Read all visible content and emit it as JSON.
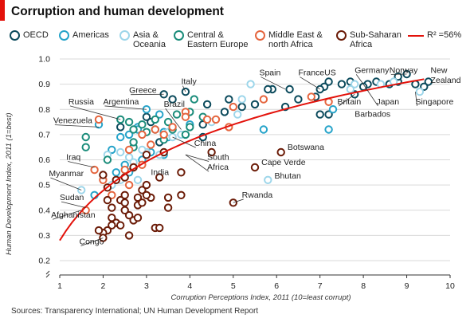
{
  "title": "Corruption and human development",
  "source": "Sources: Transparency International; UN Human Development Report",
  "legend": {
    "oecd": "OECD",
    "americas": "Americas",
    "asia": "Asia &\nOceania",
    "cee": "Central &\nEastern Europe",
    "mena": "Middle East &\nnorth Africa",
    "ssa": "Sub-Saharan\nAfrica",
    "fit": "R² =56%"
  },
  "colors": {
    "oecd": "#0b4a5c",
    "americas": "#25a3c9",
    "asia": "#9dd6ea",
    "cee": "#1a8c7a",
    "mena": "#e5653e",
    "ssa": "#6b1b07",
    "fit": "#e3120b",
    "grid": "#d9d9d9"
  },
  "chart_data": {
    "type": "scatter",
    "title": "Corruption and human development",
    "xlabel": "Corruption Perceptions Index, 2011 (10=least corrupt)",
    "ylabel": "Human Development Index, 2011 (1=best)",
    "xlim": [
      1,
      10
    ],
    "ylim": [
      0.2,
      1.0
    ],
    "xticks": [
      "1",
      "2",
      "3",
      "4",
      "5",
      "6",
      "7",
      "8",
      "9",
      "10"
    ],
    "yticks": [
      "0.2",
      "0.3",
      "0.4",
      "0.5",
      "0.6",
      "0.7",
      "0.8",
      "0.9",
      "1.0"
    ],
    "grid": true,
    "legend_position": "top",
    "trendline": {
      "label": "R² =56%",
      "x_range": [
        1,
        9.4
      ],
      "y_start": 0.28,
      "y_end": 0.92
    },
    "series": [
      {
        "key": "oecd",
        "name": "OECD",
        "points": [
          [
            9.5,
            0.91
          ],
          [
            9.4,
            0.89
          ],
          [
            9.2,
            0.9
          ],
          [
            9.0,
            0.94
          ],
          [
            8.8,
            0.91
          ],
          [
            8.8,
            0.93
          ],
          [
            8.6,
            0.9
          ],
          [
            8.3,
            0.91
          ],
          [
            8.1,
            0.9
          ],
          [
            8.0,
            0.89
          ],
          [
            7.8,
            0.86
          ],
          [
            7.7,
            0.91
          ],
          [
            7.5,
            0.9
          ],
          [
            7.2,
            0.91
          ],
          [
            7.1,
            0.89
          ],
          [
            7.0,
            0.88
          ],
          [
            6.9,
            0.85
          ],
          [
            7.0,
            0.78
          ],
          [
            7.2,
            0.78
          ],
          [
            6.5,
            0.84
          ],
          [
            6.2,
            0.81
          ],
          [
            6.3,
            0.88
          ],
          [
            5.9,
            0.88
          ],
          [
            5.8,
            0.88
          ],
          [
            5.5,
            0.82
          ],
          [
            5.2,
            0.81
          ],
          [
            4.9,
            0.84
          ],
          [
            4.4,
            0.82
          ],
          [
            3.9,
            0.87
          ],
          [
            3.6,
            0.84
          ],
          [
            3.4,
            0.86
          ],
          [
            3.0,
            0.77
          ],
          [
            3.1,
            0.75
          ],
          [
            4.3,
            0.74
          ],
          [
            4.8,
            0.79
          ],
          [
            2.4,
            0.73
          ],
          [
            3.3,
            0.67
          ],
          [
            4.3,
            0.69
          ],
          [
            3.2,
            0.72
          ]
        ]
      },
      {
        "key": "americas",
        "name": "Americas",
        "points": [
          [
            7.2,
            0.72
          ],
          [
            7.3,
            0.8
          ],
          [
            5.7,
            0.72
          ],
          [
            4.0,
            0.74
          ],
          [
            3.4,
            0.71
          ],
          [
            2.8,
            0.73
          ],
          [
            1.9,
            0.74
          ],
          [
            3.0,
            0.8
          ],
          [
            3.3,
            0.78
          ],
          [
            2.6,
            0.7
          ],
          [
            2.4,
            0.69
          ],
          [
            2.2,
            0.64
          ],
          [
            3.0,
            0.62
          ],
          [
            2.5,
            0.58
          ],
          [
            2.3,
            0.55
          ],
          [
            2.6,
            0.55
          ],
          [
            2.9,
            0.6
          ],
          [
            3.1,
            0.63
          ],
          [
            3.4,
            0.62
          ],
          [
            2.8,
            0.72
          ],
          [
            3.5,
            0.69
          ],
          [
            1.8,
            0.46
          ]
        ]
      },
      {
        "key": "asia",
        "name": "Asia & Oceania",
        "points": [
          [
            9.3,
            0.87
          ],
          [
            8.7,
            0.91
          ],
          [
            8.4,
            0.9
          ],
          [
            7.8,
            0.9
          ],
          [
            7.7,
            0.88
          ],
          [
            5.4,
            0.9
          ],
          [
            5.1,
            0.78
          ],
          [
            5.2,
            0.84
          ],
          [
            5.8,
            0.52
          ],
          [
            4.5,
            0.75
          ],
          [
            3.6,
            0.69
          ],
          [
            3.3,
            0.62
          ],
          [
            3.0,
            0.63
          ],
          [
            2.8,
            0.52
          ],
          [
            2.7,
            0.59
          ],
          [
            2.6,
            0.61
          ],
          [
            2.4,
            0.52
          ],
          [
            2.2,
            0.5
          ],
          [
            2.0,
            0.54
          ],
          [
            2.1,
            0.62
          ],
          [
            1.5,
            0.48
          ],
          [
            2.9,
            0.64
          ],
          [
            2.4,
            0.63
          ],
          [
            3.8,
            0.7
          ],
          [
            3.5,
            0.71
          ]
        ]
      },
      {
        "key": "cee",
        "name": "Central & Eastern Europe",
        "points": [
          [
            4.1,
            0.84
          ],
          [
            4.0,
            0.79
          ],
          [
            3.7,
            0.78
          ],
          [
            4.3,
            0.77
          ],
          [
            4.0,
            0.73
          ],
          [
            3.6,
            0.72
          ],
          [
            3.5,
            0.75
          ],
          [
            3.2,
            0.76
          ],
          [
            2.9,
            0.74
          ],
          [
            2.7,
            0.72
          ],
          [
            2.4,
            0.76
          ],
          [
            2.6,
            0.75
          ],
          [
            1.6,
            0.69
          ],
          [
            1.6,
            0.65
          ],
          [
            2.7,
            0.65
          ],
          [
            2.7,
            0.67
          ],
          [
            3.0,
            0.71
          ],
          [
            3.9,
            0.7
          ],
          [
            2.1,
            0.6
          ],
          [
            3.4,
            0.68
          ]
        ]
      },
      {
        "key": "mena",
        "name": "Middle East & north Africa",
        "points": [
          [
            6.8,
            0.85
          ],
          [
            7.2,
            0.83
          ],
          [
            5.7,
            0.84
          ],
          [
            5.0,
            0.81
          ],
          [
            4.6,
            0.76
          ],
          [
            4.4,
            0.76
          ],
          [
            3.9,
            0.79
          ],
          [
            3.9,
            0.77
          ],
          [
            3.6,
            0.73
          ],
          [
            3.4,
            0.7
          ],
          [
            3.2,
            0.72
          ],
          [
            3.1,
            0.66
          ],
          [
            2.9,
            0.7
          ],
          [
            2.6,
            0.64
          ],
          [
            2.9,
            0.58
          ],
          [
            2.7,
            0.57
          ],
          [
            2.5,
            0.56
          ],
          [
            2.6,
            0.5
          ],
          [
            2.2,
            0.46
          ],
          [
            2.0,
            0.52
          ],
          [
            1.8,
            0.56
          ],
          [
            1.9,
            0.76
          ],
          [
            1.6,
            0.4
          ],
          [
            4.9,
            0.73
          ]
        ]
      },
      {
        "key": "ssa",
        "name": "Sub-Saharan Africa",
        "points": [
          [
            6.1,
            0.63
          ],
          [
            5.5,
            0.57
          ],
          [
            5.0,
            0.43
          ],
          [
            4.5,
            0.63
          ],
          [
            3.8,
            0.55
          ],
          [
            3.4,
            0.63
          ],
          [
            3.0,
            0.62
          ],
          [
            2.7,
            0.57
          ],
          [
            2.5,
            0.53
          ],
          [
            2.3,
            0.52
          ],
          [
            2.1,
            0.49
          ],
          [
            2.0,
            0.54
          ],
          [
            2.2,
            0.41
          ],
          [
            2.4,
            0.44
          ],
          [
            2.5,
            0.46
          ],
          [
            2.8,
            0.45
          ],
          [
            2.9,
            0.48
          ],
          [
            3.0,
            0.5
          ],
          [
            3.1,
            0.45
          ],
          [
            2.8,
            0.42
          ],
          [
            2.6,
            0.38
          ],
          [
            2.5,
            0.4
          ],
          [
            2.3,
            0.35
          ],
          [
            2.2,
            0.34
          ],
          [
            2.1,
            0.32
          ],
          [
            2.0,
            0.31
          ],
          [
            1.9,
            0.32
          ],
          [
            2.0,
            0.29
          ],
          [
            2.2,
            0.37
          ],
          [
            2.4,
            0.34
          ],
          [
            2.6,
            0.3
          ],
          [
            2.7,
            0.36
          ],
          [
            2.9,
            0.43
          ],
          [
            3.0,
            0.46
          ],
          [
            3.2,
            0.33
          ],
          [
            3.3,
            0.33
          ],
          [
            3.5,
            0.45
          ],
          [
            3.5,
            0.41
          ],
          [
            3.8,
            0.46
          ],
          [
            2.8,
            0.37
          ],
          [
            2.5,
            0.43
          ],
          [
            2.1,
            0.44
          ],
          [
            3.3,
            0.53
          ]
        ]
      }
    ],
    "annotations": [
      {
        "text": "Spain",
        "x": 6.2,
        "y": 0.88,
        "lx": 5.6,
        "ly": 0.935
      },
      {
        "text": "France",
        "x": 7.0,
        "y": 0.88,
        "lx": 6.5,
        "ly": 0.935
      },
      {
        "text": "US",
        "x": 7.1,
        "y": 0.91,
        "lx": 7.1,
        "ly": 0.935
      },
      {
        "text": "Germany",
        "x": 8.0,
        "y": 0.9,
        "lx": 7.8,
        "ly": 0.945
      },
      {
        "text": "Norway",
        "x": 9.0,
        "y": 0.94,
        "lx": 8.6,
        "ly": 0.945
      },
      {
        "text": "New",
        "x": 9.5,
        "y": 0.91,
        "lx": 9.55,
        "ly": 0.945
      },
      {
        "text": "Zealand",
        "x": 9.5,
        "y": 0.91,
        "lx": 9.55,
        "ly": 0.905
      },
      {
        "text": "Italy",
        "x": 3.9,
        "y": 0.87,
        "lx": 3.8,
        "ly": 0.9
      },
      {
        "text": "Greece",
        "x": 3.4,
        "y": 0.86,
        "lx": 2.6,
        "ly": 0.865
      },
      {
        "text": "Britain",
        "x": 7.8,
        "y": 0.86,
        "lx": 7.4,
        "ly": 0.82
      },
      {
        "text": "Japan",
        "x": 8.0,
        "y": 0.9,
        "lx": 8.3,
        "ly": 0.82
      },
      {
        "text": "Singapore",
        "x": 9.2,
        "y": 0.87,
        "lx": 9.2,
        "ly": 0.82
      },
      {
        "text": "Barbados",
        "x": 7.8,
        "y": 0.79,
        "lx": 7.8,
        "ly": 0.77
      },
      {
        "text": "Russia",
        "x": 2.4,
        "y": 0.76,
        "lx": 1.2,
        "ly": 0.82
      },
      {
        "text": "Argentina",
        "x": 3.0,
        "y": 0.8,
        "lx": 2.0,
        "ly": 0.82
      },
      {
        "text": "Brazil",
        "x": 3.8,
        "y": 0.72,
        "lx": 3.4,
        "ly": 0.81
      },
      {
        "text": "Venezuela",
        "x": 1.9,
        "y": 0.73,
        "lx": 0.85,
        "ly": 0.745
      },
      {
        "text": "China",
        "x": 3.6,
        "y": 0.69,
        "lx": 4.1,
        "ly": 0.655
      },
      {
        "text": "South",
        "x": 3.9,
        "y": 0.62,
        "lx": 4.4,
        "ly": 0.6
      },
      {
        "text": "Africa",
        "x": 3.9,
        "y": 0.62,
        "lx": 4.4,
        "ly": 0.56
      },
      {
        "text": "Botswana",
        "x": 6.1,
        "y": 0.63,
        "lx": 6.25,
        "ly": 0.64
      },
      {
        "text": "Iraq",
        "x": 1.8,
        "y": 0.57,
        "lx": 1.15,
        "ly": 0.6
      },
      {
        "text": "India",
        "x": 3.1,
        "y": 0.55,
        "lx": 3.1,
        "ly": 0.54
      },
      {
        "text": "Myanmar",
        "x": 1.5,
        "y": 0.48,
        "lx": 0.75,
        "ly": 0.535
      },
      {
        "text": "Cape Verde",
        "x": 5.5,
        "y": 0.57,
        "lx": 5.65,
        "ly": 0.58
      },
      {
        "text": "Bhutan",
        "x": 5.8,
        "y": 0.52,
        "lx": 5.95,
        "ly": 0.525
      },
      {
        "text": "Sudan",
        "x": 1.6,
        "y": 0.41,
        "lx": 1.0,
        "ly": 0.44
      },
      {
        "text": "Rwanda",
        "x": 5.0,
        "y": 0.43,
        "lx": 5.2,
        "ly": 0.45
      },
      {
        "text": "Afghanistan",
        "x": 1.5,
        "y": 0.4,
        "lx": 0.8,
        "ly": 0.37
      },
      {
        "text": "Congo",
        "x": 2.0,
        "y": 0.29,
        "lx": 1.45,
        "ly": 0.265
      }
    ]
  }
}
